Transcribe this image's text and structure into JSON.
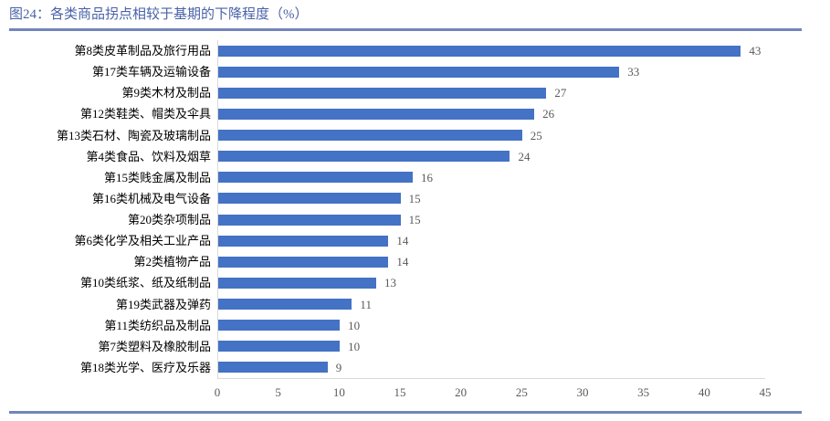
{
  "title": "图24：各类商品拐点相较于基期的下降程度（%）",
  "colors": {
    "bar": "#4472C4",
    "title_text": "#4A63A8",
    "rule": "#7285BB",
    "axis_line": "#D9D9D9",
    "tick_text": "#595959",
    "label_text": "#000000"
  },
  "chart_data": {
    "type": "bar",
    "orientation": "horizontal",
    "title": "图24：各类商品拐点相较于基期的下降程度（%）",
    "categories": [
      "第8类皮革制品及旅行用品",
      "第17类车辆及运输设备",
      "第9类木材及制品",
      "第12类鞋类、帽类及伞具",
      "第13类石材、陶瓷及玻璃制品",
      "第4类食品、饮料及烟草",
      "第15类贱金属及制品",
      "第16类机械及电气设备",
      "第20类杂项制品",
      "第6类化学及相关工业产品",
      "第2类植物产品",
      "第10类纸浆、纸及纸制品",
      "第19类武器及弹药",
      "第11类纺织品及制品",
      "第7类塑料及橡胶制品",
      "第18类光学、医疗及乐器"
    ],
    "values": [
      43,
      33,
      27,
      26,
      25,
      24,
      16,
      15,
      15,
      14,
      14,
      13,
      11,
      10,
      10,
      9
    ],
    "value_labels_shown": true,
    "xlabel": "",
    "ylabel": "",
    "xlim": [
      0,
      45
    ],
    "xticks": [
      0,
      5,
      10,
      15,
      20,
      25,
      30,
      35,
      40,
      45
    ],
    "grid": false,
    "legend": "none"
  }
}
